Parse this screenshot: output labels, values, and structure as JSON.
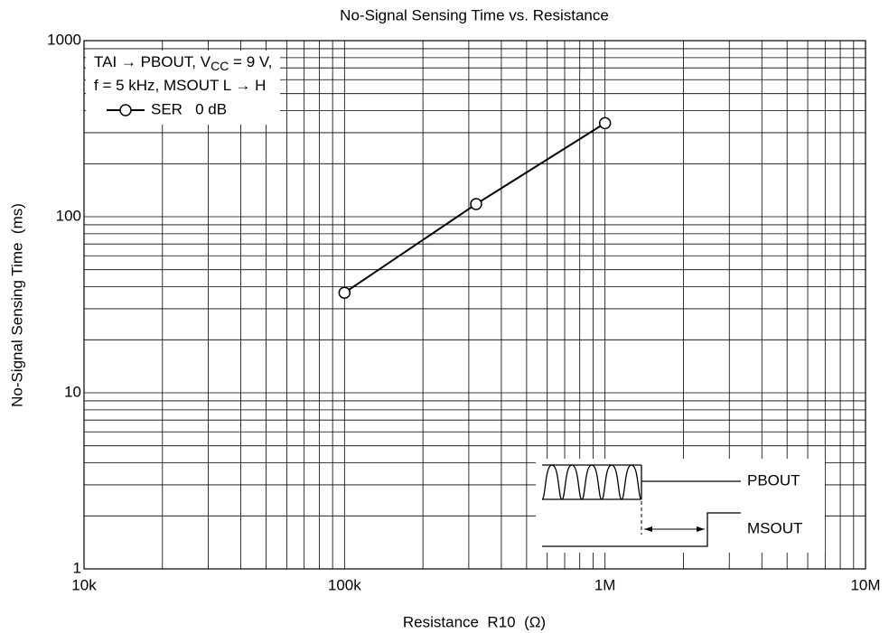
{
  "chart_data": {
    "type": "line",
    "title": "No-Signal Sensing Time vs. Resistance",
    "x_label": "Resistance  R10  (Ω)",
    "y_label": "No-Signal Sensing Time  (ms)",
    "x": [
      100000,
      320000,
      1000000
    ],
    "series": [
      {
        "name": "SER   0 dB",
        "color": "#000000",
        "values": [
          37,
          118,
          340
        ]
      }
    ],
    "xlim": [
      10000,
      10000000
    ],
    "ylim": [
      1,
      1000
    ],
    "xticks": [
      {
        "value": 10000,
        "label": "10k"
      },
      {
        "value": 100000,
        "label": "100k"
      },
      {
        "value": 1000000,
        "label": "1M"
      },
      {
        "value": 10000000,
        "label": "10M"
      }
    ],
    "yticks": [
      1,
      10,
      100,
      1000
    ],
    "xscale": "log",
    "yscale": "log",
    "grid": true,
    "legend_position": "upper left",
    "conditions": [
      [
        {
          "text": "TAI → PBOUT, V"
        },
        {
          "text": "CC",
          "sub": true
        },
        {
          "text": " = 9 V,"
        }
      ],
      [
        {
          "text": "f = 5 kHz, MSOUT L → H"
        }
      ]
    ],
    "inset_labels": [
      "PBOUT",
      "MSOUT"
    ]
  }
}
